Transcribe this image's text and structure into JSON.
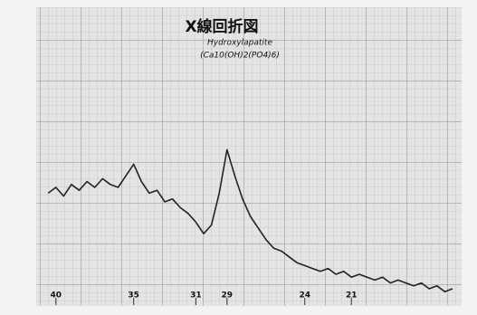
{
  "chart_data": {
    "type": "line",
    "title": "X線回折図",
    "subtitle": "Hydroxylapatite",
    "annotation": "(Ca10(OH)2(PO4)6)",
    "x": [
      40.5,
      40,
      39.5,
      39,
      38.5,
      38,
      37.5,
      37,
      36.5,
      36,
      35.5,
      35,
      34.5,
      34,
      33.5,
      33,
      32.5,
      32,
      31.5,
      31,
      30.5,
      30,
      29.5,
      29,
      28.5,
      28,
      27.5,
      27,
      26.5,
      26,
      25.5,
      25,
      24.5,
      24,
      23.5,
      23,
      22.5,
      22,
      21.5,
      21,
      20.5,
      20,
      19.5,
      19,
      18.5,
      18,
      17.5,
      17,
      16.5,
      16,
      15.5,
      15,
      14.5
    ],
    "values": [
      38,
      40,
      37,
      41,
      39,
      42,
      40,
      43,
      41,
      40,
      44,
      48,
      42,
      38,
      39,
      35,
      36,
      33,
      31,
      28,
      24,
      27,
      38,
      53,
      44,
      36,
      30,
      26,
      22,
      19,
      18,
      16,
      14,
      13,
      12,
      11,
      12,
      10,
      11,
      9,
      10,
      9,
      8,
      9,
      7,
      8,
      7,
      6,
      7,
      5,
      6,
      4,
      5
    ],
    "color": "#222222",
    "xlim": [
      40.8,
      14.5
    ],
    "xticks": [
      40,
      35,
      31,
      29,
      24,
      21
    ],
    "ylim": [
      0,
      100
    ],
    "grid": true
  }
}
